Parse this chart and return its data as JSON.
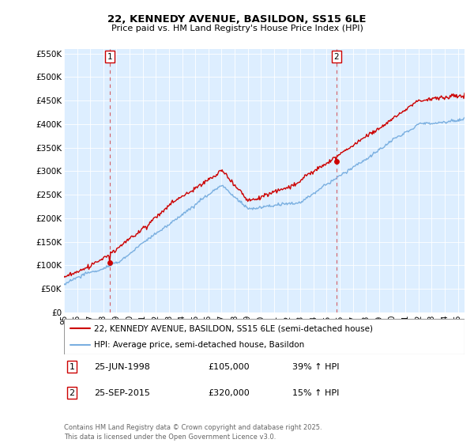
{
  "title1": "22, KENNEDY AVENUE, BASILDON, SS15 6LE",
  "title2": "Price paid vs. HM Land Registry's House Price Index (HPI)",
  "ylim": [
    0,
    560000
  ],
  "yticks": [
    0,
    50000,
    100000,
    150000,
    200000,
    250000,
    300000,
    350000,
    400000,
    450000,
    500000,
    550000
  ],
  "ytick_labels": [
    "£0",
    "£50K",
    "£100K",
    "£150K",
    "£200K",
    "£250K",
    "£300K",
    "£350K",
    "£400K",
    "£450K",
    "£500K",
    "£550K"
  ],
  "xmin": 1995.0,
  "xmax": 2025.5,
  "sale1_date": 1998.48,
  "sale1_price": 105000,
  "sale2_date": 2015.73,
  "sale2_price": 320000,
  "hpi_color": "#7aafe0",
  "price_color": "#cc0000",
  "bg_plot_color": "#ddeeff",
  "legend1": "22, KENNEDY AVENUE, BASILDON, SS15 6LE (semi-detached house)",
  "legend2": "HPI: Average price, semi-detached house, Basildon",
  "footer": "Contains HM Land Registry data © Crown copyright and database right 2025.\nThis data is licensed under the Open Government Licence v3.0.",
  "grid_color": "#ffffff"
}
